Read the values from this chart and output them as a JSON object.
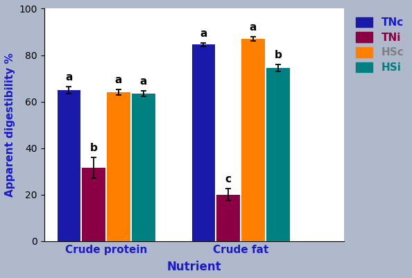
{
  "groups": [
    "Crude protein",
    "Crude fat"
  ],
  "series": [
    "TNc",
    "TNi",
    "HSc",
    "HSi"
  ],
  "colors": [
    "#1a1aaa",
    "#8b0045",
    "#ff7f00",
    "#008080"
  ],
  "values": [
    [
      65.0,
      31.5,
      64.0,
      63.5
    ],
    [
      84.5,
      20.0,
      87.0,
      74.5
    ]
  ],
  "errors": [
    [
      1.5,
      4.5,
      1.2,
      1.2
    ],
    [
      0.8,
      2.5,
      1.0,
      1.5
    ]
  ],
  "letters": [
    [
      "a",
      "b",
      "a",
      "a"
    ],
    [
      "a",
      "c",
      "a",
      "b"
    ]
  ],
  "ylabel": "Apparent digestibility %",
  "xlabel": "Nutrient",
  "ylim": [
    0,
    100
  ],
  "yticks": [
    0,
    20,
    40,
    60,
    80,
    100
  ],
  "background_color": "#b0b8cc",
  "plot_bg_color": "#ffffff",
  "legend_text_colors": [
    "#1a1acc",
    "#8b0045",
    "#808080",
    "#008080"
  ],
  "bar_width": 0.15,
  "group_centers": [
    1.0,
    2.3
  ],
  "xlim": [
    0.4,
    3.3
  ]
}
